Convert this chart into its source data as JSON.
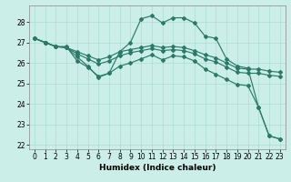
{
  "xlabel": "Humidex (Indice chaleur)",
  "background_color": "#cceee8",
  "grid_color": "#aaddcc",
  "line_color": "#2a7a6a",
  "xlim": [
    -0.5,
    23.5
  ],
  "ylim": [
    21.8,
    28.8
  ],
  "yticks": [
    22,
    23,
    24,
    25,
    26,
    27,
    28
  ],
  "xticks": [
    0,
    1,
    2,
    3,
    4,
    5,
    6,
    7,
    8,
    9,
    10,
    11,
    12,
    13,
    14,
    15,
    16,
    17,
    18,
    19,
    20,
    21,
    22,
    23
  ],
  "line1": {
    "x": [
      0,
      1,
      2,
      3,
      4,
      5,
      6,
      7,
      8,
      9,
      10,
      11,
      12,
      13,
      14,
      15,
      16,
      17,
      18,
      19,
      20,
      21,
      22,
      23
    ],
    "y": [
      27.2,
      27.0,
      26.8,
      26.8,
      26.1,
      25.8,
      25.35,
      25.5,
      26.55,
      27.0,
      28.15,
      28.3,
      27.95,
      28.2,
      28.2,
      27.95,
      27.3,
      27.2,
      26.2,
      25.85,
      25.75,
      23.85,
      22.45,
      22.3
    ]
  },
  "line2": {
    "x": [
      0,
      1,
      2,
      3,
      4,
      5,
      6,
      7,
      8,
      9,
      10,
      11,
      12,
      13,
      14,
      15,
      16,
      17,
      18,
      19,
      20,
      21,
      22,
      23
    ],
    "y": [
      27.2,
      27.0,
      26.8,
      26.75,
      26.55,
      26.35,
      26.15,
      26.3,
      26.55,
      26.65,
      26.75,
      26.85,
      26.75,
      26.8,
      26.75,
      26.6,
      26.4,
      26.25,
      26.0,
      25.75,
      25.7,
      25.7,
      25.6,
      25.55
    ]
  },
  "line3": {
    "x": [
      0,
      1,
      2,
      3,
      4,
      5,
      6,
      7,
      8,
      9,
      10,
      11,
      12,
      13,
      14,
      15,
      16,
      17,
      18,
      19,
      20,
      21,
      22,
      23
    ],
    "y": [
      27.2,
      27.0,
      26.8,
      26.75,
      26.45,
      26.2,
      25.95,
      26.1,
      26.35,
      26.5,
      26.6,
      26.7,
      26.6,
      26.65,
      26.6,
      26.45,
      26.2,
      26.05,
      25.8,
      25.55,
      25.5,
      25.5,
      25.4,
      25.35
    ]
  },
  "line4": {
    "x": [
      0,
      1,
      2,
      3,
      4,
      5,
      6,
      7,
      8,
      9,
      10,
      11,
      12,
      13,
      14,
      15,
      16,
      17,
      18,
      19,
      20,
      21,
      22,
      23
    ],
    "y": [
      27.2,
      27.0,
      26.8,
      26.75,
      26.3,
      25.85,
      25.3,
      25.5,
      25.85,
      26.0,
      26.2,
      26.4,
      26.15,
      26.35,
      26.3,
      26.1,
      25.7,
      25.45,
      25.2,
      24.95,
      24.9,
      23.85,
      22.45,
      22.3
    ]
  }
}
